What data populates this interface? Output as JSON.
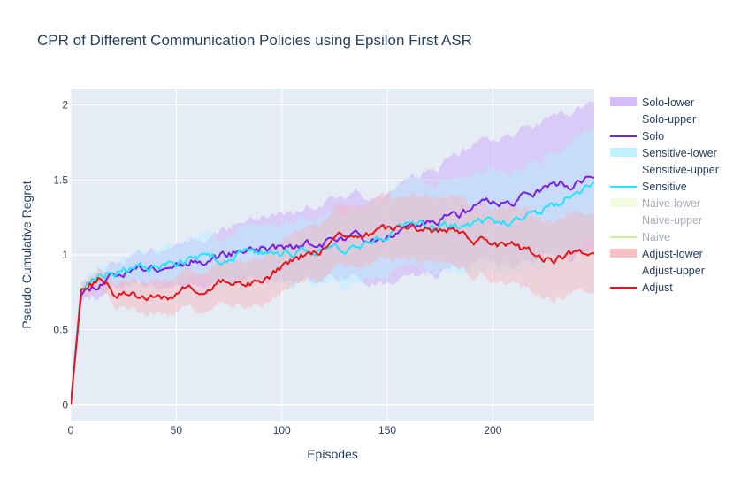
{
  "chart_data": {
    "type": "line",
    "title": "CPR of Different Communication Policies using Epsilon First ASR",
    "xlabel": "Episodes",
    "ylabel": "Pseudo Cumulative Regret",
    "xlim": [
      0,
      248
    ],
    "ylim": [
      -0.11,
      2.11
    ],
    "x_ticks": [
      0,
      50,
      100,
      150,
      200
    ],
    "y_ticks": [
      0,
      0.5,
      1,
      1.5,
      2
    ],
    "grid": true,
    "legend_position": "right",
    "series": [
      {
        "name": "Solo",
        "color": "#7a1fe8",
        "band_color": "#cfb0f8",
        "band_opacity": 0.55,
        "knots": [
          [
            0,
            0
          ],
          [
            5,
            0.76
          ],
          [
            10,
            0.8
          ],
          [
            20,
            0.88
          ],
          [
            30,
            0.91
          ],
          [
            40,
            0.93
          ],
          [
            50,
            0.95
          ],
          [
            60,
            0.98
          ],
          [
            70,
            1.0
          ],
          [
            80,
            1.03
          ],
          [
            90,
            1.05
          ],
          [
            100,
            1.04
          ],
          [
            110,
            1.06
          ],
          [
            120,
            1.08
          ],
          [
            130,
            1.1
          ],
          [
            140,
            1.12
          ],
          [
            150,
            1.15
          ],
          [
            160,
            1.18
          ],
          [
            170,
            1.22
          ],
          [
            180,
            1.26
          ],
          [
            190,
            1.3
          ],
          [
            200,
            1.34
          ],
          [
            210,
            1.38
          ],
          [
            220,
            1.42
          ],
          [
            230,
            1.45
          ],
          [
            240,
            1.48
          ],
          [
            248,
            1.5
          ]
        ],
        "spread": [
          [
            0,
            0
          ],
          [
            5,
            0.05
          ],
          [
            30,
            0.1
          ],
          [
            60,
            0.15
          ],
          [
            100,
            0.22
          ],
          [
            150,
            0.3
          ],
          [
            200,
            0.4
          ],
          [
            248,
            0.5
          ]
        ],
        "seed": 11
      },
      {
        "name": "Sensitive",
        "color": "#1fe5ff",
        "band_color": "#b4f0ff",
        "band_opacity": 0.45,
        "knots": [
          [
            0,
            0
          ],
          [
            5,
            0.8
          ],
          [
            10,
            0.84
          ],
          [
            20,
            0.9
          ],
          [
            30,
            0.9
          ],
          [
            40,
            0.92
          ],
          [
            50,
            0.94
          ],
          [
            60,
            0.97
          ],
          [
            70,
            0.98
          ],
          [
            80,
            1.0
          ],
          [
            90,
            1.01
          ],
          [
            100,
            1.0
          ],
          [
            110,
            1.03
          ],
          [
            120,
            1.05
          ],
          [
            130,
            1.06
          ],
          [
            140,
            1.1
          ],
          [
            150,
            1.14
          ],
          [
            160,
            1.17
          ],
          [
            170,
            1.2
          ],
          [
            180,
            1.2
          ],
          [
            190,
            1.2
          ],
          [
            200,
            1.22
          ],
          [
            210,
            1.22
          ],
          [
            220,
            1.27
          ],
          [
            230,
            1.34
          ],
          [
            240,
            1.42
          ],
          [
            248,
            1.44
          ]
        ],
        "spread": [
          [
            0,
            0
          ],
          [
            5,
            0.05
          ],
          [
            30,
            0.1
          ],
          [
            60,
            0.14
          ],
          [
            100,
            0.2
          ],
          [
            150,
            0.27
          ],
          [
            200,
            0.33
          ],
          [
            248,
            0.38
          ]
        ],
        "seed": 23
      },
      {
        "name": "Naive",
        "color": "#c8ef9a",
        "band_color": "#e6f8cc",
        "band_opacity": 0.35,
        "knots": [
          [
            0,
            0
          ],
          [
            5,
            0.78
          ],
          [
            248,
            1.0
          ]
        ],
        "spread": [
          [
            0,
            0
          ],
          [
            248,
            0.2
          ]
        ],
        "seed": 5,
        "hidden": true
      },
      {
        "name": "Adjust",
        "color": "#e8141c",
        "band_color": "#f6b4b6",
        "band_opacity": 0.45,
        "knots": [
          [
            0,
            0
          ],
          [
            5,
            0.76
          ],
          [
            10,
            0.8
          ],
          [
            15,
            0.84
          ],
          [
            20,
            0.76
          ],
          [
            30,
            0.74
          ],
          [
            40,
            0.7
          ],
          [
            50,
            0.73
          ],
          [
            60,
            0.77
          ],
          [
            70,
            0.81
          ],
          [
            80,
            0.81
          ],
          [
            90,
            0.84
          ],
          [
            100,
            0.92
          ],
          [
            110,
            0.98
          ],
          [
            120,
            1.06
          ],
          [
            130,
            1.12
          ],
          [
            140,
            1.13
          ],
          [
            150,
            1.15
          ],
          [
            160,
            1.17
          ],
          [
            170,
            1.17
          ],
          [
            180,
            1.16
          ],
          [
            190,
            1.13
          ],
          [
            200,
            1.08
          ],
          [
            210,
            1.04
          ],
          [
            220,
            0.99
          ],
          [
            230,
            0.97
          ],
          [
            240,
            1.01
          ],
          [
            248,
            1.06
          ]
        ],
        "spread": [
          [
            0,
            0
          ],
          [
            5,
            0.05
          ],
          [
            30,
            0.1
          ],
          [
            60,
            0.13
          ],
          [
            100,
            0.17
          ],
          [
            150,
            0.21
          ],
          [
            200,
            0.25
          ],
          [
            248,
            0.26
          ]
        ],
        "seed": 37
      }
    ],
    "legend": [
      {
        "label": "Solo-lower",
        "kind": "band",
        "color": "#cfb0f8",
        "dim": false
      },
      {
        "label": "Solo-upper",
        "kind": "none",
        "color": "#ffffff",
        "dim": false
      },
      {
        "label": "Solo",
        "kind": "line",
        "color": "#7a1fe8",
        "dim": false
      },
      {
        "label": "Sensitive-lower",
        "kind": "band",
        "color": "#b4f0ff",
        "dim": false
      },
      {
        "label": "Sensitive-upper",
        "kind": "none",
        "color": "#ffffff",
        "dim": false
      },
      {
        "label": "Sensitive",
        "kind": "line",
        "color": "#1fe5ff",
        "dim": false
      },
      {
        "label": "Naive-lower",
        "kind": "band",
        "color": "#e6f8cc",
        "dim": true
      },
      {
        "label": "Naive-upper",
        "kind": "none",
        "color": "#ffffff",
        "dim": true
      },
      {
        "label": "Naive",
        "kind": "line",
        "color": "#c8ef9a",
        "dim": true
      },
      {
        "label": "Adjust-lower",
        "kind": "band",
        "color": "#f6b4b6",
        "dim": false
      },
      {
        "label": "Adjust-upper",
        "kind": "none",
        "color": "#ffffff",
        "dim": false
      },
      {
        "label": "Adjust",
        "kind": "line",
        "color": "#e8141c",
        "dim": false
      }
    ]
  }
}
